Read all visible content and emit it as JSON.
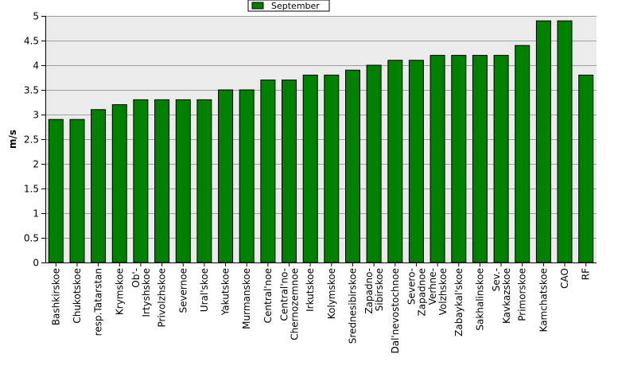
{
  "chart_data": {
    "type": "bar",
    "categories": [
      "Bashkirskoe",
      "Chukotskoe",
      "resp.Tatarstan",
      "Krymskoe",
      "Ob'-Irtyshskoe",
      "Privolzhskoe",
      "Severnoe",
      "Ural'skoe",
      "Yakutskoe",
      "Murmanskoe",
      "Central'noe",
      "Central'no-Chernozemnoe",
      "Irkutskoe",
      "Kolymskoe",
      "Srednesibirskoe",
      "Zapadno-Sibirskoe",
      "Dal'nevostochnoe",
      "Severo-Zapadnoe",
      "Verhne-Volzhskoe",
      "Zabaykal'skoe",
      "Sakhalinskoe",
      "Sev.-Kavkazskoe",
      "Primorskoe",
      "Kamchatskoe",
      "CAO",
      "RF"
    ],
    "tick_labels": [
      [
        "Bashkirskoe"
      ],
      [
        "Chukotskoe"
      ],
      [
        "resp.Tatarstan"
      ],
      [
        "Krymskoe"
      ],
      [
        "Ob'-",
        "Irtyshskoe"
      ],
      [
        "Privolzhskoe"
      ],
      [
        "Severnoe"
      ],
      [
        "Ural'skoe"
      ],
      [
        "Yakutskoe"
      ],
      [
        "Murmanskoe"
      ],
      [
        "Central'noe"
      ],
      [
        "Central'no-",
        "Chernozemnoe"
      ],
      [
        "Irkutskoe"
      ],
      [
        "Kolymskoe"
      ],
      [
        "Srednesibirskoe"
      ],
      [
        "Zapadno-",
        "Sibirskoe"
      ],
      [
        "Dal'nevostochnoe"
      ],
      [
        "Severo-",
        "Zapadnoe"
      ],
      [
        "Verhne-",
        "Volzhskoe"
      ],
      [
        "Zabaykal'skoe"
      ],
      [
        "Sakhalinskoe"
      ],
      [
        "Sev.-",
        "Kavkazskoe"
      ],
      [
        "Primorskoe"
      ],
      [
        "Kamchatskoe"
      ],
      [
        "CAO"
      ],
      [
        "RF"
      ]
    ],
    "series": [
      {
        "name": "September",
        "values": [
          2.9,
          2.9,
          3.1,
          3.2,
          3.3,
          3.3,
          3.3,
          3.3,
          3.5,
          3.5,
          3.7,
          3.7,
          3.8,
          3.8,
          3.9,
          4.0,
          4.1,
          4.1,
          4.2,
          4.2,
          4.2,
          4.2,
          4.4,
          4.9,
          4.9,
          3.8
        ]
      }
    ],
    "ylabel": "m/s",
    "ylim": [
      0,
      5
    ],
    "yticks": [
      0,
      0.5,
      1,
      1.5,
      2,
      2.5,
      3,
      3.5,
      4,
      4.5,
      5
    ],
    "grid": true,
    "legend_position": "top-center",
    "colors": {
      "bar": "#008000",
      "bar_edge": "#000000",
      "plot_bg": "#ebebeb",
      "grid": "#a0a0a0",
      "legend_bg": "#ffffff"
    }
  }
}
